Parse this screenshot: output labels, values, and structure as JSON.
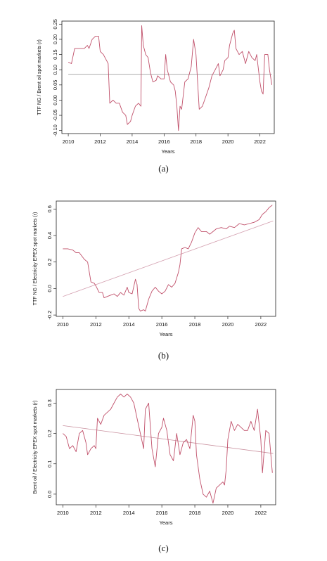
{
  "chart_data": [
    {
      "type": "line",
      "caption": "(a)",
      "xlabel": "Years",
      "ylabel": "TTF NG / Brent oil spot markets (r)",
      "xlim": [
        2009.6,
        2022.9
      ],
      "ylim": [
        -0.11,
        0.26
      ],
      "xticks": [
        2010,
        2012,
        2014,
        2016,
        2018,
        2020,
        2022
      ],
      "yticks": [
        "-0.10",
        "-0.05",
        "0.00",
        "0.05",
        "0.10",
        "0.15",
        "0.20",
        "0.25"
      ],
      "ytick_values": [
        -0.1,
        -0.05,
        0.0,
        0.05,
        0.1,
        0.15,
        0.2,
        0.25
      ],
      "series": [
        {
          "values": [
            [
              2010.0,
              0.125
            ],
            [
              2010.2,
              0.12
            ],
            [
              2010.4,
              0.17
            ],
            [
              2010.7,
              0.17
            ],
            [
              2011.0,
              0.17
            ],
            [
              2011.2,
              0.18
            ],
            [
              2011.3,
              0.17
            ],
            [
              2011.5,
              0.2
            ],
            [
              2011.7,
              0.21
            ],
            [
              2011.9,
              0.21
            ],
            [
              2012.0,
              0.16
            ],
            [
              2012.2,
              0.15
            ],
            [
              2012.4,
              0.13
            ],
            [
              2012.5,
              0.12
            ],
            [
              2012.6,
              -0.01
            ],
            [
              2012.8,
              0.0
            ],
            [
              2013.0,
              -0.01
            ],
            [
              2013.2,
              -0.01
            ],
            [
              2013.4,
              -0.04
            ],
            [
              2013.6,
              -0.05
            ],
            [
              2013.7,
              -0.08
            ],
            [
              2013.9,
              -0.07
            ],
            [
              2014.0,
              -0.05
            ],
            [
              2014.2,
              -0.02
            ],
            [
              2014.4,
              -0.01
            ],
            [
              2014.55,
              -0.02
            ],
            [
              2014.6,
              0.245
            ],
            [
              2014.7,
              0.18
            ],
            [
              2014.85,
              0.15
            ],
            [
              2015.0,
              0.14
            ],
            [
              2015.15,
              0.09
            ],
            [
              2015.3,
              0.06
            ],
            [
              2015.5,
              0.065
            ],
            [
              2015.6,
              0.08
            ],
            [
              2015.8,
              0.07
            ],
            [
              2015.9,
              0.07
            ],
            [
              2016.0,
              0.07
            ],
            [
              2016.1,
              0.15
            ],
            [
              2016.2,
              0.1
            ],
            [
              2016.4,
              0.06
            ],
            [
              2016.6,
              0.05
            ],
            [
              2016.7,
              0.03
            ],
            [
              2016.8,
              -0.02
            ],
            [
              2016.9,
              -0.1
            ],
            [
              2017.0,
              -0.02
            ],
            [
              2017.1,
              -0.03
            ],
            [
              2017.3,
              0.06
            ],
            [
              2017.5,
              0.07
            ],
            [
              2017.7,
              0.11
            ],
            [
              2017.85,
              0.2
            ],
            [
              2018.0,
              0.15
            ],
            [
              2018.1,
              0.06
            ],
            [
              2018.2,
              -0.03
            ],
            [
              2018.4,
              -0.02
            ],
            [
              2018.6,
              0.01
            ],
            [
              2018.8,
              0.04
            ],
            [
              2019.0,
              0.08
            ],
            [
              2019.2,
              0.1
            ],
            [
              2019.4,
              0.12
            ],
            [
              2019.5,
              0.08
            ],
            [
              2019.7,
              0.1
            ],
            [
              2019.8,
              0.13
            ],
            [
              2020.0,
              0.14
            ],
            [
              2020.1,
              0.18
            ],
            [
              2020.3,
              0.22
            ],
            [
              2020.4,
              0.23
            ],
            [
              2020.5,
              0.17
            ],
            [
              2020.7,
              0.15
            ],
            [
              2020.9,
              0.16
            ],
            [
              2021.1,
              0.12
            ],
            [
              2021.3,
              0.16
            ],
            [
              2021.5,
              0.14
            ],
            [
              2021.7,
              0.13
            ],
            [
              2021.8,
              0.15
            ],
            [
              2022.0,
              0.06
            ],
            [
              2022.1,
              0.03
            ],
            [
              2022.2,
              0.02
            ],
            [
              2022.3,
              0.15
            ],
            [
              2022.5,
              0.15
            ],
            [
              2022.6,
              0.1
            ],
            [
              2022.75,
              0.05
            ]
          ]
        }
      ],
      "trend": [
        [
          2010.0,
          0.085
        ],
        [
          2022.75,
          0.085
        ]
      ],
      "colors": {
        "series": "#c0506a",
        "trend": "#a0a0a0",
        "axis": "#222222"
      }
    },
    {
      "type": "line",
      "caption": "(b)",
      "xlabel": "Years",
      "ylabel": "TTF NG / Electricity EPEX spot markets (r)",
      "xlim": [
        2009.6,
        2022.9
      ],
      "ylim": [
        -0.21,
        0.66
      ],
      "xticks": [
        2010,
        2012,
        2014,
        2016,
        2018,
        2020,
        2022
      ],
      "yticks": [
        "-0.2",
        "0.0",
        "0.2",
        "0.4",
        "0.6"
      ],
      "ytick_values": [
        -0.2,
        0.0,
        0.2,
        0.4,
        0.6
      ],
      "series": [
        {
          "values": [
            [
              2010.0,
              0.3
            ],
            [
              2010.3,
              0.3
            ],
            [
              2010.6,
              0.29
            ],
            [
              2010.8,
              0.27
            ],
            [
              2011.0,
              0.27
            ],
            [
              2011.3,
              0.22
            ],
            [
              2011.5,
              0.2
            ],
            [
              2011.7,
              0.05
            ],
            [
              2011.9,
              0.04
            ],
            [
              2012.0,
              0.02
            ],
            [
              2012.2,
              -0.03
            ],
            [
              2012.4,
              -0.03
            ],
            [
              2012.5,
              -0.07
            ],
            [
              2012.7,
              -0.06
            ],
            [
              2012.9,
              -0.05
            ],
            [
              2013.1,
              -0.04
            ],
            [
              2013.3,
              -0.06
            ],
            [
              2013.5,
              -0.03
            ],
            [
              2013.7,
              -0.05
            ],
            [
              2013.9,
              0.01
            ],
            [
              2014.0,
              -0.03
            ],
            [
              2014.2,
              -0.04
            ],
            [
              2014.4,
              0.07
            ],
            [
              2014.5,
              0.03
            ],
            [
              2014.6,
              -0.15
            ],
            [
              2014.7,
              -0.17
            ],
            [
              2014.9,
              -0.16
            ],
            [
              2015.0,
              -0.17
            ],
            [
              2015.2,
              -0.08
            ],
            [
              2015.4,
              -0.02
            ],
            [
              2015.6,
              0.01
            ],
            [
              2015.8,
              -0.02
            ],
            [
              2016.0,
              -0.04
            ],
            [
              2016.2,
              -0.02
            ],
            [
              2016.4,
              0.03
            ],
            [
              2016.6,
              0.01
            ],
            [
              2016.8,
              0.04
            ],
            [
              2017.0,
              0.12
            ],
            [
              2017.1,
              0.18
            ],
            [
              2017.2,
              0.3
            ],
            [
              2017.4,
              0.31
            ],
            [
              2017.6,
              0.3
            ],
            [
              2017.8,
              0.35
            ],
            [
              2018.0,
              0.42
            ],
            [
              2018.2,
              0.46
            ],
            [
              2018.4,
              0.43
            ],
            [
              2018.7,
              0.43
            ],
            [
              2018.9,
              0.41
            ],
            [
              2019.1,
              0.43
            ],
            [
              2019.3,
              0.45
            ],
            [
              2019.6,
              0.46
            ],
            [
              2019.9,
              0.45
            ],
            [
              2020.1,
              0.47
            ],
            [
              2020.4,
              0.46
            ],
            [
              2020.7,
              0.49
            ],
            [
              2021.0,
              0.48
            ],
            [
              2021.3,
              0.49
            ],
            [
              2021.6,
              0.5
            ],
            [
              2021.9,
              0.52
            ],
            [
              2022.1,
              0.56
            ],
            [
              2022.3,
              0.58
            ],
            [
              2022.5,
              0.61
            ],
            [
              2022.7,
              0.63
            ]
          ]
        }
      ],
      "trend": [
        [
          2010.0,
          -0.06
        ],
        [
          2022.75,
          0.51
        ]
      ],
      "colors": {
        "series": "#c0506a",
        "trend": "#d4a0b0",
        "axis": "#222222"
      }
    },
    {
      "type": "line",
      "caption": "(c)",
      "xlabel": "Years",
      "ylabel": "Brent oil / Electricity EPEX spot markets (r)",
      "xlim": [
        2009.6,
        2022.9
      ],
      "ylim": [
        -0.035,
        0.345
      ],
      "xticks": [
        2010,
        2012,
        2014,
        2016,
        2018,
        2020,
        2022
      ],
      "yticks": [
        "0.0",
        "0.1",
        "0.2",
        "0.3"
      ],
      "ytick_values": [
        0.0,
        0.1,
        0.2,
        0.3
      ],
      "series": [
        {
          "values": [
            [
              2010.0,
              0.2
            ],
            [
              2010.2,
              0.19
            ],
            [
              2010.4,
              0.15
            ],
            [
              2010.6,
              0.16
            ],
            [
              2010.8,
              0.14
            ],
            [
              2011.0,
              0.2
            ],
            [
              2011.2,
              0.21
            ],
            [
              2011.4,
              0.17
            ],
            [
              2011.5,
              0.13
            ],
            [
              2011.7,
              0.15
            ],
            [
              2011.9,
              0.16
            ],
            [
              2012.0,
              0.15
            ],
            [
              2012.1,
              0.25
            ],
            [
              2012.3,
              0.23
            ],
            [
              2012.5,
              0.26
            ],
            [
              2012.7,
              0.27
            ],
            [
              2012.9,
              0.28
            ],
            [
              2013.1,
              0.3
            ],
            [
              2013.3,
              0.32
            ],
            [
              2013.5,
              0.33
            ],
            [
              2013.7,
              0.32
            ],
            [
              2013.9,
              0.33
            ],
            [
              2014.1,
              0.32
            ],
            [
              2014.3,
              0.3
            ],
            [
              2014.5,
              0.25
            ],
            [
              2014.7,
              0.2
            ],
            [
              2014.9,
              0.15
            ],
            [
              2015.0,
              0.28
            ],
            [
              2015.2,
              0.3
            ],
            [
              2015.4,
              0.15
            ],
            [
              2015.6,
              0.09
            ],
            [
              2015.8,
              0.2
            ],
            [
              2016.0,
              0.22
            ],
            [
              2016.1,
              0.25
            ],
            [
              2016.3,
              0.21
            ],
            [
              2016.5,
              0.13
            ],
            [
              2016.7,
              0.11
            ],
            [
              2016.9,
              0.2
            ],
            [
              2017.1,
              0.13
            ],
            [
              2017.3,
              0.17
            ],
            [
              2017.5,
              0.18
            ],
            [
              2017.7,
              0.15
            ],
            [
              2017.9,
              0.26
            ],
            [
              2018.0,
              0.24
            ],
            [
              2018.1,
              0.13
            ],
            [
              2018.3,
              0.05
            ],
            [
              2018.5,
              0.0
            ],
            [
              2018.7,
              -0.01
            ],
            [
              2018.9,
              0.01
            ],
            [
              2019.1,
              -0.03
            ],
            [
              2019.3,
              0.02
            ],
            [
              2019.5,
              0.03
            ],
            [
              2019.7,
              0.04
            ],
            [
              2019.8,
              0.03
            ],
            [
              2019.9,
              0.08
            ],
            [
              2020.0,
              0.18
            ],
            [
              2020.2,
              0.24
            ],
            [
              2020.4,
              0.21
            ],
            [
              2020.6,
              0.23
            ],
            [
              2020.8,
              0.22
            ],
            [
              2021.0,
              0.21
            ],
            [
              2021.2,
              0.21
            ],
            [
              2021.4,
              0.24
            ],
            [
              2021.6,
              0.21
            ],
            [
              2021.8,
              0.28
            ],
            [
              2022.0,
              0.18
            ],
            [
              2022.1,
              0.07
            ],
            [
              2022.3,
              0.21
            ],
            [
              2022.5,
              0.2
            ],
            [
              2022.7,
              0.07
            ]
          ]
        }
      ],
      "trend": [
        [
          2010.0,
          0.226
        ],
        [
          2022.75,
          0.134
        ]
      ],
      "colors": {
        "series": "#c0506a",
        "trend": "#c9909e",
        "axis": "#222222"
      }
    }
  ]
}
